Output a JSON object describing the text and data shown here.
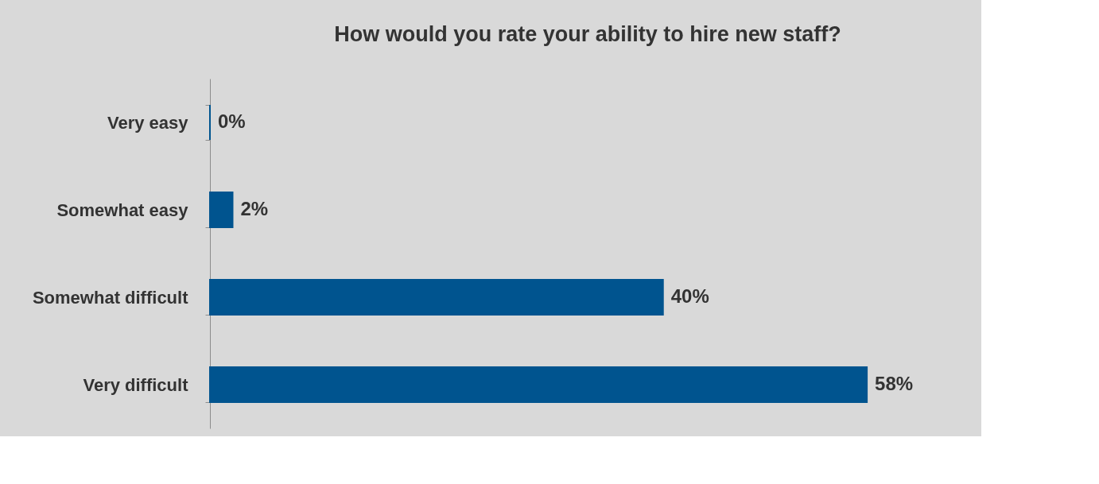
{
  "chart_data": {
    "type": "bar",
    "orientation": "horizontal",
    "title": "How would you rate your ability to hire new staff?",
    "categories": [
      "Very easy",
      "Somewhat easy",
      "Somewhat difficult",
      "Very difficult"
    ],
    "values": [
      0,
      2,
      40,
      58
    ],
    "value_labels": [
      "0%",
      "2%",
      "40%",
      "58%"
    ],
    "color": "#00548f"
  }
}
